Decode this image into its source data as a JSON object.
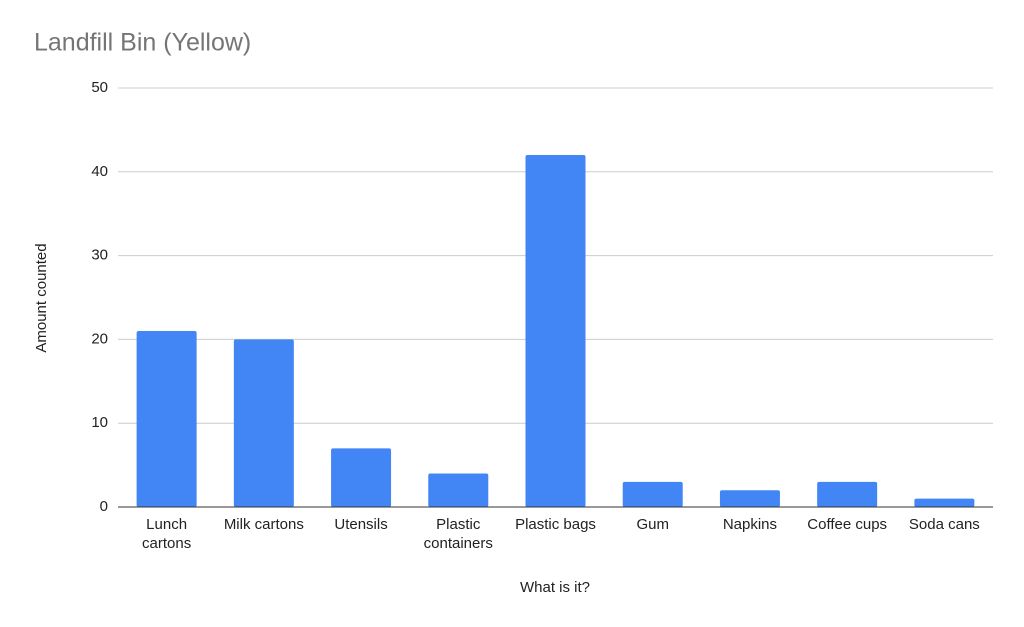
{
  "chart_data": {
    "type": "bar",
    "title": "Landfill Bin (Yellow)",
    "x_label": "What is it?",
    "y_label": "Amount counted",
    "categories": [
      "Lunch cartons",
      "Milk cartons",
      "Utensils",
      "Plastic containers",
      "Plastic bags",
      "Gum",
      "Napkins",
      "Coffee cups",
      "Soda cans"
    ],
    "values": [
      21,
      20,
      7,
      4,
      42,
      3,
      2,
      3,
      1
    ],
    "color": "#4285f4",
    "ylim": [
      0,
      50
    ],
    "yticks": [
      0,
      10,
      20,
      30,
      40,
      50
    ],
    "grid": true
  }
}
